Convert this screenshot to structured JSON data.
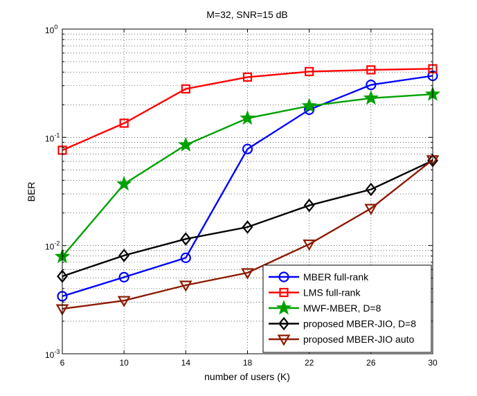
{
  "chart_data": {
    "type": "line",
    "title": "M=32, SNR=15 dB",
    "xlabel": "number of users (K)",
    "ylabel": "BER",
    "xlim": [
      6,
      30
    ],
    "ylim": [
      0.001,
      1
    ],
    "yscale": "log",
    "grid": true,
    "legend_position": "bottom-right",
    "x": [
      6,
      10,
      14,
      18,
      22,
      26,
      30
    ],
    "xticks": [
      "6",
      "10",
      "14",
      "18",
      "22",
      "26",
      "30"
    ],
    "yticks": [
      {
        "value": 0.001,
        "base": "10",
        "exp": "-3"
      },
      {
        "value": 0.01,
        "base": "10",
        "exp": "-2"
      },
      {
        "value": 0.1,
        "base": "10",
        "exp": "-1"
      },
      {
        "value": 1,
        "base": "10",
        "exp": "0"
      }
    ],
    "series": [
      {
        "name": "MBER full-rank",
        "color": "#0000ff",
        "marker": "circle",
        "values": [
          0.0034,
          0.0051,
          0.0077,
          0.078,
          0.18,
          0.305,
          0.37
        ]
      },
      {
        "name": "LMS full-rank",
        "color": "#ff0000",
        "marker": "square",
        "values": [
          0.076,
          0.135,
          0.28,
          0.36,
          0.405,
          0.42,
          0.43
        ]
      },
      {
        "name": "MWF-MBER, D=8",
        "color": "#00a000",
        "marker": "star",
        "values": [
          0.0079,
          0.037,
          0.085,
          0.15,
          0.195,
          0.23,
          0.25
        ]
      },
      {
        "name": "proposed MBER-JIO, D=8",
        "color": "#000000",
        "marker": "diamond",
        "values": [
          0.0052,
          0.0081,
          0.0115,
          0.0148,
          0.0235,
          0.033,
          0.061
        ]
      },
      {
        "name": "proposed MBER-JIO auto",
        "color": "#8b1a00",
        "marker": "triangle-down",
        "values": [
          0.0026,
          0.0031,
          0.0043,
          0.0056,
          0.0103,
          0.022,
          0.062
        ]
      }
    ]
  }
}
